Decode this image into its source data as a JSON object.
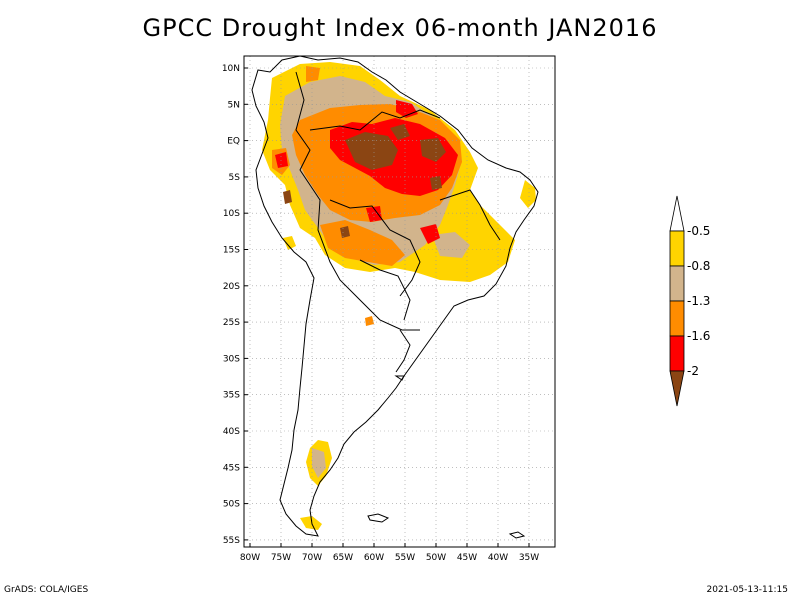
{
  "title": "GPCC Drought Index 06-month JAN2016",
  "footer": {
    "left": "GrADS: COLA/IGES",
    "right": "2021-05-13-11:15"
  },
  "map": {
    "lat_labels": [
      "10N",
      "5N",
      "EQ",
      "5S",
      "10S",
      "15S",
      "20S",
      "25S",
      "30S",
      "35S",
      "40S",
      "45S",
      "50S",
      "55S"
    ],
    "lon_labels": [
      "80W",
      "75W",
      "70W",
      "65W",
      "60W",
      "55W",
      "50W",
      "45W",
      "40W",
      "35W"
    ],
    "lat_range": [
      10,
      -55
    ],
    "lon_range": [
      -80,
      -35
    ]
  },
  "legend": {
    "labels": [
      "-0.5",
      "-0.8",
      "-1.3",
      "-1.6",
      "-2"
    ],
    "colors": [
      "#ffffff",
      "#ffd400",
      "#d2b48c",
      "#ff8c00",
      "#ff0000",
      "#8b4513"
    ]
  }
}
